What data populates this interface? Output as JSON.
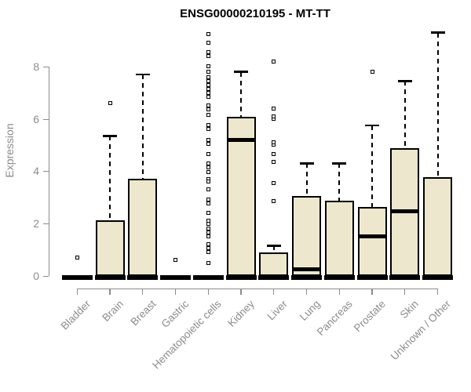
{
  "title": "ENSG00000210195 - MT-TT",
  "colors": {
    "box_fill": "#ece7cd",
    "box_border": "#000000",
    "axis": "#8c8c8c",
    "title_text": "#000000"
  },
  "chart_data": {
    "type": "boxplot",
    "title": "ENSG00000210195 - MT-TT",
    "xlabel": "",
    "ylabel": "Expression",
    "yticks": [
      0,
      2,
      4,
      6,
      8
    ],
    "ylim": [
      0,
      9.65
    ],
    "grid": "off",
    "legend": "none",
    "categories": [
      "Bladder",
      "Brain",
      "Breast",
      "Gastric",
      "Hematopoietic cells",
      "Kidney",
      "Liver",
      "Lung",
      "Pancreas",
      "Prostate",
      "Skin",
      "Unknown / Other"
    ],
    "boxes": [
      {
        "label": "Bladder",
        "whisker_low": 0,
        "q1": 0,
        "median": 0,
        "q3": 0,
        "whisker_high": 0,
        "outliers": [
          0.7
        ]
      },
      {
        "label": "Brain",
        "whisker_low": 0,
        "q1": 0,
        "median": 0.05,
        "q3": 2.12,
        "whisker_high": 5.35,
        "outliers": [
          6.6
        ]
      },
      {
        "label": "Breast",
        "whisker_low": 0,
        "q1": 0,
        "median": 0.05,
        "q3": 3.72,
        "whisker_high": 7.7,
        "outliers": []
      },
      {
        "label": "Gastric",
        "whisker_low": 0,
        "q1": 0,
        "median": 0,
        "q3": 0,
        "whisker_high": 0,
        "outliers": [
          0.62
        ]
      },
      {
        "label": "Hematopoietic cells",
        "whisker_low": 0,
        "q1": 0,
        "median": 0,
        "q3": 0,
        "whisker_high": 0,
        "outliers": [
          9.25,
          8.9,
          8.55,
          8.4,
          8.0,
          7.8,
          7.6,
          7.45,
          7.3,
          7.15,
          7.0,
          6.85,
          6.5,
          6.35,
          6.15,
          5.75,
          5.6,
          5.2,
          5.05,
          4.65,
          4.3,
          4.15,
          3.95,
          3.7,
          3.6,
          3.3,
          2.9,
          2.75,
          2.4,
          2.1,
          2.0,
          1.8,
          1.65,
          1.5,
          1.2,
          1.05,
          0.9,
          0.5
        ]
      },
      {
        "label": "Kidney",
        "whisker_low": 0,
        "q1": 0,
        "median": 5.2,
        "q3": 6.08,
        "whisker_high": 7.8,
        "outliers": []
      },
      {
        "label": "Liver",
        "whisker_low": 0,
        "q1": 0,
        "median": 0.05,
        "q3": 0.9,
        "whisker_high": 1.15,
        "outliers": [
          2.85,
          3.55,
          4.35,
          4.65,
          5.0,
          5.1,
          6.0,
          6.1,
          6.4,
          8.2
        ]
      },
      {
        "label": "Lung",
        "whisker_low": 0,
        "q1": 0,
        "median": 0.25,
        "q3": 3.05,
        "whisker_high": 4.3,
        "outliers": []
      },
      {
        "label": "Pancreas",
        "whisker_low": 0,
        "q1": 0,
        "median": 0.05,
        "q3": 2.87,
        "whisker_high": 4.3,
        "outliers": []
      },
      {
        "label": "Prostate",
        "whisker_low": 0,
        "q1": 0,
        "median": 1.5,
        "q3": 2.62,
        "whisker_high": 5.75,
        "outliers": [
          7.8
        ]
      },
      {
        "label": "Skin",
        "whisker_low": 0,
        "q1": 0,
        "median": 2.45,
        "q3": 4.87,
        "whisker_high": 7.45,
        "outliers": []
      },
      {
        "label": "Unknown / Other",
        "whisker_low": 0,
        "q1": 0,
        "median": 0.05,
        "q3": 3.77,
        "whisker_high": 9.3,
        "outliers": []
      }
    ]
  }
}
